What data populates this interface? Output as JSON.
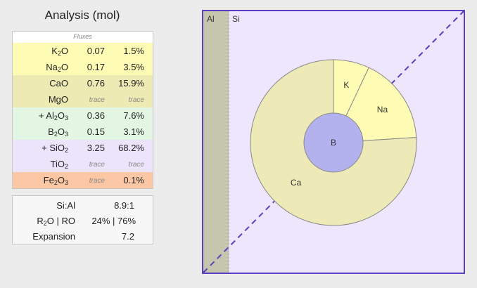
{
  "title": "Analysis (mol)",
  "fluxes_header": "Fluxes",
  "colors": {
    "flux_alkali": "#fefcb4",
    "flux_earth": "#eeeab4",
    "stabilizer": "#e3f5e3",
    "glass_former": "#ebe4fb",
    "colorant": "#fbc7a4",
    "plot_frame": "#5a3fc0",
    "plot_bg": "#eee6fc",
    "al_strip": "#c6c5ad",
    "pie_slice": "#eeeab8",
    "pie_inner": "#b4b2ee"
  },
  "analysis": {
    "groups": [
      {
        "color": "#fefcb4",
        "rows": [
          {
            "name": "k2o",
            "main": "K",
            "sub": "2",
            "tail": "O",
            "value": "0.07",
            "percent": "1.5%"
          },
          {
            "name": "na2o",
            "main": "Na",
            "sub": "2",
            "tail": "O",
            "value": "0.17",
            "percent": "3.5%"
          }
        ]
      },
      {
        "color": "#eeeab4",
        "rows": [
          {
            "name": "cao",
            "main": "CaO",
            "sub": "",
            "tail": "",
            "value": "0.76",
            "percent": "15.9%"
          },
          {
            "name": "mgo",
            "main": "MgO",
            "sub": "",
            "tail": "",
            "value": "trace",
            "percent": "trace"
          }
        ]
      },
      {
        "color": "#e3f5e3",
        "rows": [
          {
            "name": "al2o3",
            "main": "+ Al",
            "sub": "2",
            "tail": "O",
            "sub2": "3",
            "value": "0.36",
            "percent": "7.6%"
          },
          {
            "name": "b2o3",
            "main": "B",
            "sub": "2",
            "tail": "O",
            "sub2": "3",
            "value": "0.15",
            "percent": "3.1%"
          }
        ]
      },
      {
        "color": "#ebe4fb",
        "rows": [
          {
            "name": "sio2",
            "main": "+ SiO",
            "sub": "2",
            "tail": "",
            "value": "3.25",
            "percent": "68.2%"
          },
          {
            "name": "tio2",
            "main": "TiO",
            "sub": "2",
            "tail": "",
            "value": "trace",
            "percent": "trace"
          }
        ]
      },
      {
        "color": "#fbc7a4",
        "rows": [
          {
            "name": "fe2o3",
            "main": "Fe",
            "sub": "2",
            "tail": "O",
            "sub2": "3",
            "value": "trace",
            "percent": "0.1%"
          }
        ]
      }
    ]
  },
  "stats": {
    "si_al_label": "Si:Al",
    "si_al_value": "8.9:1",
    "r2o_ro_label_main": "R",
    "r2o_ro_label_sub": "2",
    "r2o_ro_label_tail": "O | RO",
    "r2o_ro_value": "24% | 76%",
    "expansion_label": "Expansion",
    "expansion_value": "7.2"
  },
  "chart_data": {
    "type": "pie",
    "axis_labels": {
      "left": "Al",
      "right": "Si"
    },
    "outer_ring": [
      {
        "label": "K",
        "value": 0.07
      },
      {
        "label": "Na",
        "value": 0.17
      },
      {
        "label": "Ca",
        "value": 0.76
      }
    ],
    "inner_circle": {
      "label": "B"
    }
  }
}
